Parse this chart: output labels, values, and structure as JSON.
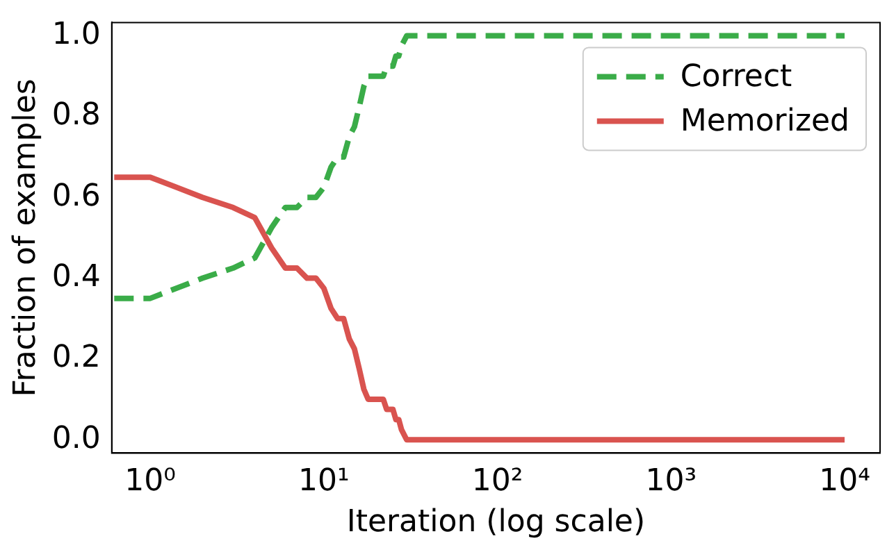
{
  "chart_data": {
    "type": "line",
    "xlabel": "Iteration (log scale)",
    "ylabel": "Fraction of examples",
    "log": "x",
    "xlim": [
      0.62,
      16000
    ],
    "xticks": [
      {
        "value": 1,
        "label": "10⁰"
      },
      {
        "value": 10,
        "label": "10¹"
      },
      {
        "value": 100,
        "label": "10²"
      },
      {
        "value": 1000,
        "label": "10³"
      },
      {
        "value": 10000,
        "label": "10⁴"
      }
    ],
    "ylim": [
      -0.033,
      1.033
    ],
    "yticks": [
      {
        "value": 0,
        "label": "0.0"
      },
      {
        "value": 0.2,
        "label": "0.2"
      },
      {
        "value": 0.4,
        "label": "0.4"
      },
      {
        "value": 0.6,
        "label": "0.6"
      },
      {
        "value": 0.8,
        "label": "0.8"
      },
      {
        "value": 1,
        "label": "1.0"
      }
    ],
    "grid": false,
    "legend": "top right",
    "marker": "none",
    "x": [
      0.62,
      1,
      2,
      3,
      4,
      5,
      6,
      7,
      8,
      9,
      10,
      11,
      12,
      13,
      14,
      15,
      16,
      17,
      18,
      22,
      23,
      25,
      26,
      27,
      28,
      30,
      10000
    ],
    "series": [
      {
        "name": "Correct",
        "color": "#3aac48",
        "line_style": "dashed",
        "values": [
          0.35,
          0.35,
          0.4,
          0.425,
          0.45,
          0.525,
          0.575,
          0.575,
          0.6,
          0.6,
          0.625,
          0.675,
          0.7,
          0.7,
          0.75,
          0.775,
          0.825,
          0.875,
          0.9,
          0.9,
          0.925,
          0.925,
          0.95,
          0.95,
          0.975,
          1,
          1
        ]
      },
      {
        "name": "Memorized",
        "color": "#d9534f",
        "line_style": "solid",
        "values": [
          0.65,
          0.65,
          0.6,
          0.575,
          0.55,
          0.475,
          0.425,
          0.425,
          0.4,
          0.4,
          0.375,
          0.325,
          0.3,
          0.3,
          0.25,
          0.225,
          0.175,
          0.125,
          0.1,
          0.1,
          0.075,
          0.075,
          0.05,
          0.05,
          0.025,
          0,
          0
        ]
      }
    ]
  }
}
